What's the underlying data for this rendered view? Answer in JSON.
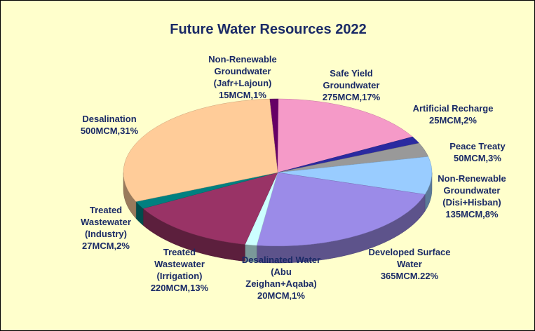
{
  "chart_data": {
    "type": "pie",
    "title": "Future Water Resources 2022",
    "categories": [
      "Non-Renewable Groundwater (Jafr+Lajoun)",
      "Safe Yield Groundwater",
      "Artificial Recharge",
      "Peace Treaty",
      "Non-Renewable Groundwater (Disi+Hisban)",
      "Developed Surface Water",
      "Desalinated Water (Abu Zeighan+Aqaba)",
      "Treated Wastewater (Irrigation)",
      "Treated Wastewater (Industry)",
      "Desalination"
    ],
    "values": [
      15,
      275,
      25,
      50,
      135,
      365,
      20,
      220,
      27,
      500
    ],
    "value_labels": [
      "15MCM,1%",
      "275MCM,17%",
      "25MCM,2%",
      "50MCM,3%",
      "135MCM,8%",
      "365MCM.22%",
      "20MCM,1%",
      "220MCM,13%",
      "27MCM,2%",
      "500MCM,31%"
    ],
    "colors": [
      "#660066",
      "#f59ac8",
      "#2a2aa0",
      "#999999",
      "#99ccff",
      "#9b8be8",
      "#ccffff",
      "#993366",
      "#008080",
      "#ffcc99"
    ]
  }
}
